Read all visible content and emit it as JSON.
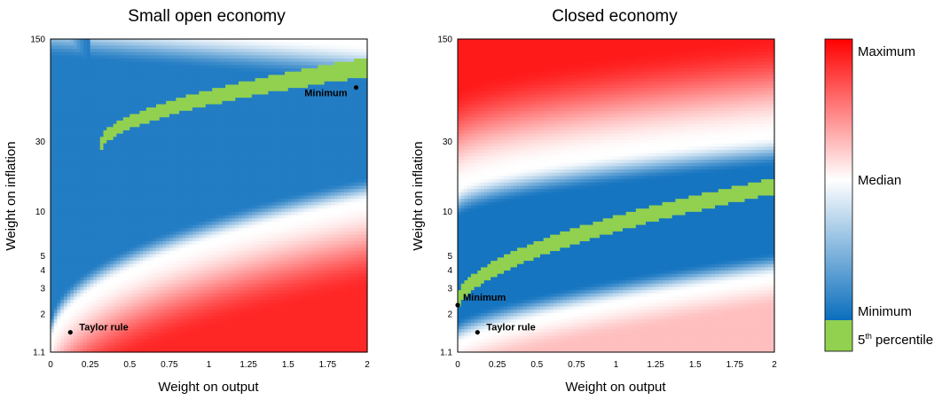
{
  "chart_data": [
    {
      "type": "heatmap",
      "title": "Small open economy",
      "xlabel": "Weight on output",
      "ylabel": "Weight on inflation",
      "xlim": [
        0,
        2
      ],
      "ylim": [
        1.1,
        150
      ],
      "y_scale": "log",
      "x_ticks": [
        "0",
        "0.25",
        "0.5",
        "0.75",
        "1",
        "1.25",
        "1.5",
        "1.75",
        "2"
      ],
      "y_ticks": [
        "1.1",
        "2",
        "3",
        "4",
        "5",
        "10",
        "30",
        "150"
      ],
      "annotations": [
        {
          "label": "Taylor rule",
          "x": 0.125,
          "y": 1.5
        },
        {
          "label": "Minimum",
          "x": 1.93,
          "y": 70
        }
      ]
    },
    {
      "type": "heatmap",
      "title": "Closed economy",
      "xlabel": "Weight on output",
      "ylabel": "Weight on inflation",
      "xlim": [
        0,
        2
      ],
      "ylim": [
        1.1,
        150
      ],
      "y_scale": "log",
      "x_ticks": [
        "0",
        "0.25",
        "0.5",
        "0.75",
        "1",
        "1.25",
        "1.5",
        "1.75",
        "2"
      ],
      "y_ticks": [
        "1.1",
        "2",
        "3",
        "4",
        "5",
        "10",
        "30",
        "150"
      ],
      "annotations": [
        {
          "label": "Minimum",
          "x": 0,
          "y": 2.3
        },
        {
          "label": "Taylor rule",
          "x": 0.125,
          "y": 1.5
        }
      ]
    }
  ],
  "legend": {
    "maximum": "Maximum",
    "median": "Median",
    "minimum": "Minimum",
    "percentile_num": "5",
    "percentile_sup": "th",
    "percentile_rest": " percentile"
  },
  "colors": {
    "maximum": "#ff0000",
    "median": "#ffffff",
    "minimum": "#0a6ebd",
    "percentile": "#92d050"
  }
}
